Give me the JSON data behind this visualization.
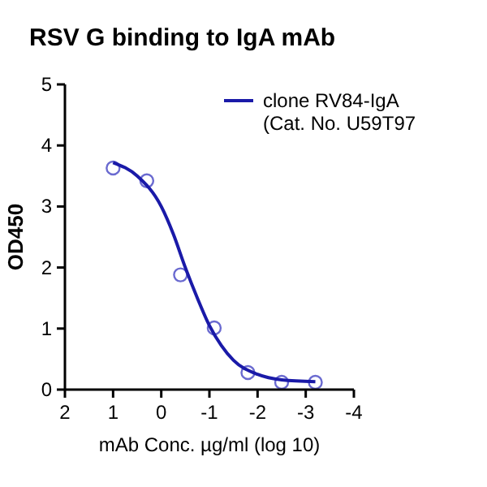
{
  "chart_data": {
    "type": "scatter",
    "title": "RSV G binding to IgA mAb",
    "xlabel": "mAb Conc. µg/ml (log 10)",
    "ylabel": "OD450",
    "xlim": [
      2,
      -4
    ],
    "xticks": [
      2,
      1,
      0,
      -1,
      -2,
      -3,
      -4
    ],
    "ylim": [
      0,
      5
    ],
    "yticks": [
      0,
      1,
      2,
      3,
      4,
      5
    ],
    "grid": false,
    "legend": "top right",
    "series": [
      {
        "color": "#6a6ad0",
        "marker": "circle",
        "x": [
          1,
          0.3,
          -0.4,
          -1.1,
          -1.8,
          -2.5,
          -3.2
        ],
        "values": [
          3.63,
          3.42,
          1.88,
          1.01,
          0.28,
          0.12,
          0.12
        ]
      },
      {
        "type": "line",
        "name": "clone RV84-IgA\n(Cat. No. U59T97",
        "color": "#1a1aa8",
        "line_style": "solid",
        "x": [
          1,
          0.5,
          0,
          -0.25,
          -0.5,
          -0.75,
          -1,
          -1.25,
          -1.5,
          -2,
          -2.5,
          -3.2
        ],
        "values": [
          3.72,
          3.5,
          3.0,
          2.55,
          2.0,
          1.5,
          1.05,
          0.72,
          0.48,
          0.25,
          0.16,
          0.13
        ]
      }
    ]
  }
}
